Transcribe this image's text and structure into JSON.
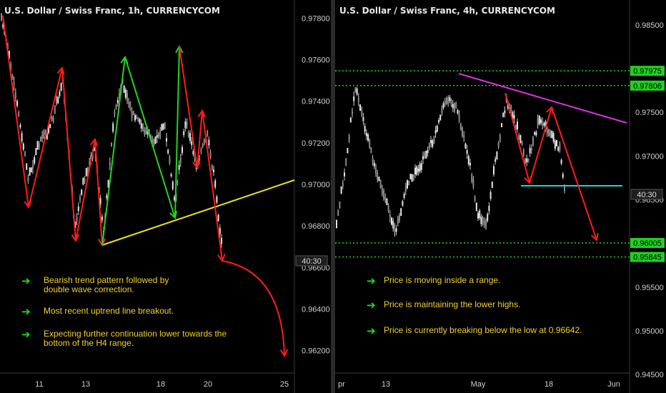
{
  "chart_data": [
    {
      "type": "candlestick",
      "title": "U.S. Dollar / Swiss Franc, 1h, CURRENCYCOM",
      "y_ticks": [
        "0.97800",
        "0.97600",
        "0.97400",
        "0.97200",
        "0.97000",
        "0.96800",
        "0.96600",
        "0.96400",
        "0.96200"
      ],
      "x_ticks": [
        "11",
        "13",
        "18",
        "20",
        "25"
      ],
      "ylim": [
        0.9603,
        0.9786
      ],
      "price_label": "40:30",
      "grid": false,
      "annotations": [
        "Bearish trend pattern followed by double wave correction.",
        "Most recent uptrend line breakout.",
        "Expecting further continuation lower towards the bottom of the H4 range."
      ],
      "trendline_color": "#e8e21b",
      "bear_color": "#ff1b1b",
      "bull_color": "#22d322"
    },
    {
      "type": "candlestick",
      "title": "U.S. Dollar / Swiss Franc, 4h, CURRENCYCOM",
      "y_ticks": [
        "0.98500",
        "0.97500",
        "0.97000",
        "0.96500",
        "0.95500",
        "0.95000",
        "0.94500"
      ],
      "x_ticks": [
        "pr",
        "13",
        "May",
        "18",
        "Jun"
      ],
      "ylim": [
        0.9437,
        0.9872
      ],
      "level_labels": [
        "0.97975",
        "0.97806",
        "0.96005",
        "0.95845"
      ],
      "price_label": "40:30",
      "grid": false,
      "annotations": [
        "Price is moving inside a range.",
        "Price is maintaining the lower highs.",
        "Price is currently breaking below the low at 0.96642."
      ],
      "level_color": "#1fd11f",
      "trendline_color": "#e02fe0",
      "support_color": "#11d8e8",
      "bear_color": "#ff1b1b"
    }
  ]
}
